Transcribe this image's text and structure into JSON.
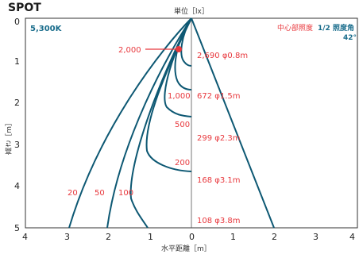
{
  "header": {
    "title": "SPOT",
    "unit": "単位［lx］",
    "color_temp": "5,300K",
    "center_label": "中心部照度",
    "half_angle_label": "1/2 照度角",
    "half_angle_value": "42°"
  },
  "axes": {
    "x_label": "水平距離［m］",
    "y_label": "高さ［m］",
    "x_ticks": [
      "4",
      "3",
      "2",
      "1",
      "0",
      "1",
      "2",
      "3",
      "4"
    ],
    "y_ticks": [
      "0",
      "1",
      "2",
      "3",
      "4",
      "5"
    ]
  },
  "chart_data": {
    "type": "line",
    "beam_half_angle_deg": 42,
    "point_marker": {
      "height_m": 0.6,
      "label": "2,000"
    },
    "center_readings": [
      {
        "height_m": 1,
        "illuminance": "2,690",
        "diameter": "φ0.8m"
      },
      {
        "height_m": 2,
        "illuminance": "672",
        "diameter": "φ1.5m"
      },
      {
        "height_m": 3,
        "illuminance": "299",
        "diameter": "φ2.3m"
      },
      {
        "height_m": 4,
        "illuminance": "168",
        "diameter": "φ3.1m"
      },
      {
        "height_m": 5,
        "illuminance": "108",
        "diameter": "φ3.8m"
      }
    ],
    "isolux_labels": [
      "1,000",
      "500",
      "200",
      "100",
      "50",
      "20"
    ]
  }
}
